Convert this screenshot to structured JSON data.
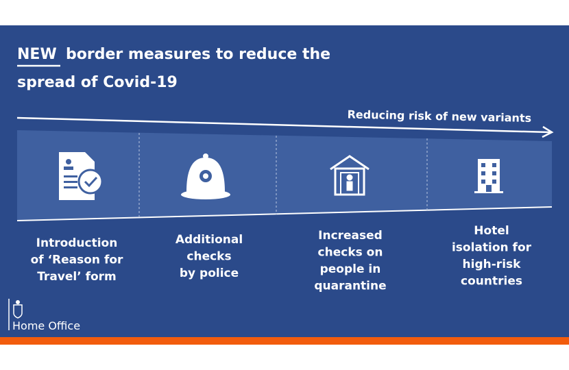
{
  "title": {
    "emphasis": "NEW",
    "lines": [
      "border measures to reduce the",
      "spread of Covid-19"
    ]
  },
  "arrow_label": "Reducing risk of new variants",
  "items": [
    {
      "lines": [
        "Introduction",
        "of ‘Reason for",
        "Travel’ form"
      ]
    },
    {
      "lines": [
        "Additional",
        "checks",
        "by police"
      ]
    },
    {
      "lines": [
        "Increased",
        "checks on",
        "people in",
        "quarantine"
      ]
    },
    {
      "lines": [
        "Hotel",
        "isolation for",
        "high-risk",
        "countries"
      ]
    }
  ],
  "footer": "Home Office"
}
